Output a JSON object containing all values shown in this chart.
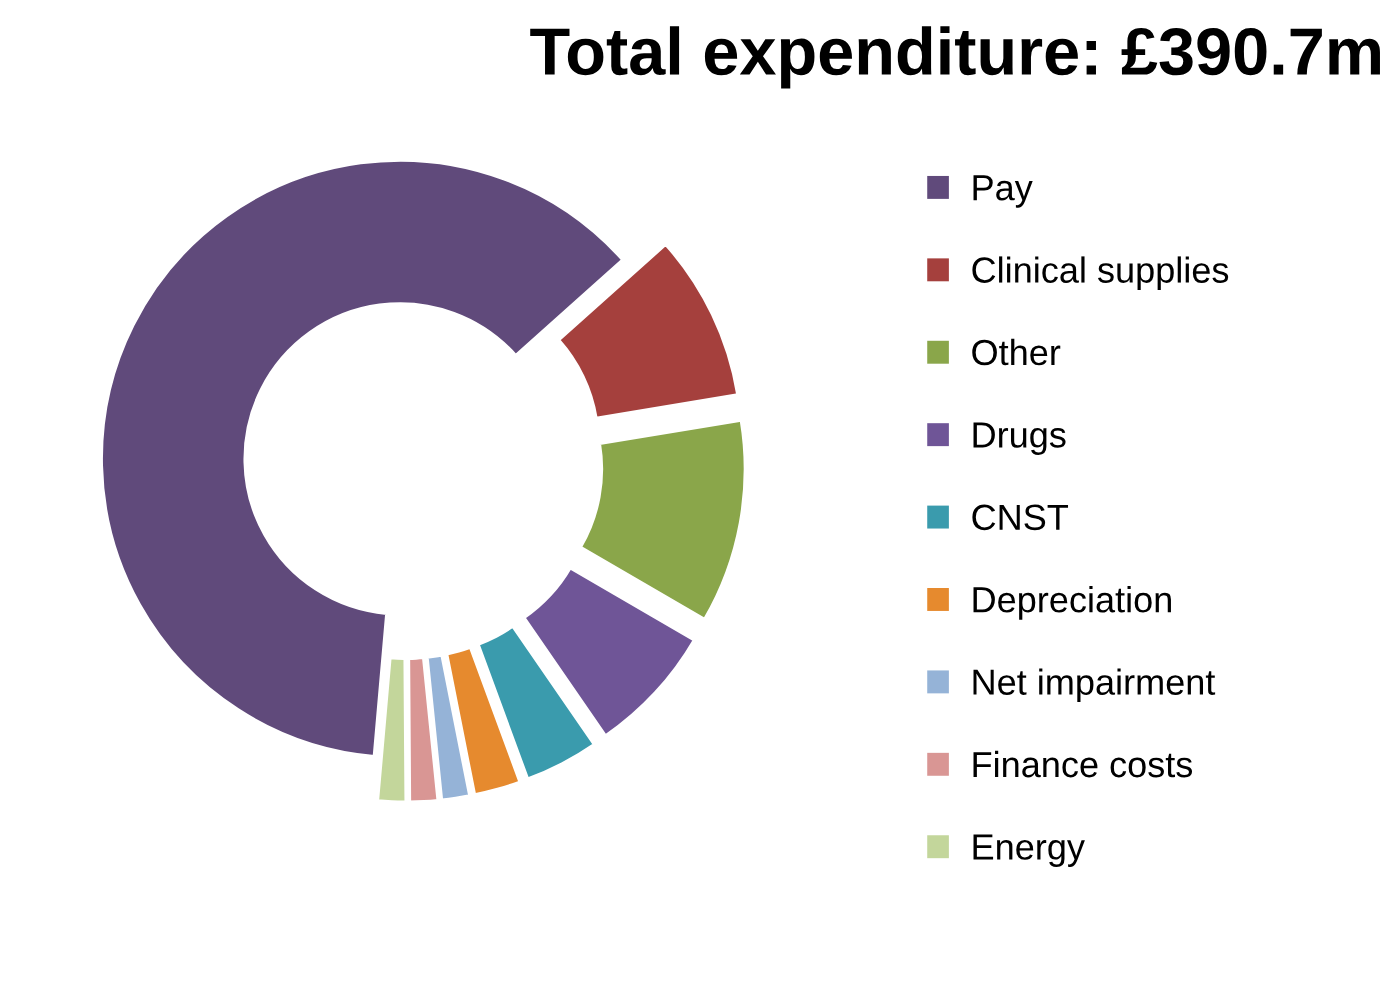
{
  "chart_data": {
    "type": "donut",
    "title": "Total expenditure: £390.7m",
    "categories": [
      "Pay",
      "Clinical supplies",
      "Other",
      "Drugs",
      "CNST",
      "Depreciation",
      "Net impairment",
      "Finance costs",
      "Energy"
    ],
    "values": [
      62,
      9,
      11,
      7,
      4,
      2.5,
      1.5,
      1.5,
      1.5
    ],
    "colors": [
      "#604a7b",
      "#a5403d",
      "#8aa64a",
      "#6f5597",
      "#3a9bad",
      "#e68a2e",
      "#95b3d7",
      "#d99694",
      "#c3d69b"
    ],
    "legend": "right"
  }
}
